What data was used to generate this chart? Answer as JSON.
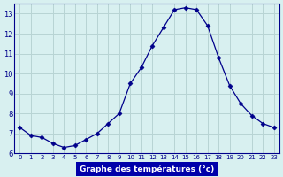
{
  "hours": [
    0,
    1,
    2,
    3,
    4,
    5,
    6,
    7,
    8,
    9,
    10,
    11,
    12,
    13,
    14,
    15,
    16,
    17,
    18,
    19,
    20,
    21,
    22,
    23
  ],
  "temperatures": [
    7.3,
    6.9,
    6.8,
    6.5,
    6.3,
    6.4,
    6.7,
    7.0,
    7.5,
    8.0,
    9.5,
    10.3,
    11.4,
    12.3,
    13.2,
    13.3,
    13.2,
    12.4,
    10.8,
    9.4,
    8.5,
    7.9,
    7.5,
    7.3
  ],
  "ylim": [
    6,
    13.5
  ],
  "yticks": [
    6,
    7,
    8,
    9,
    10,
    11,
    12,
    13
  ],
  "xlabel": "Graphe des températures (°c)",
  "bg_color": "#d8f0f0",
  "grid_color": "#b8d4d4",
  "line_color": "#00008b",
  "marker_color": "#00008b",
  "tick_color": "#00008b",
  "spine_color": "#00008b",
  "xlabel_bg": "#0000aa",
  "xlabel_fg": "#ffffff"
}
